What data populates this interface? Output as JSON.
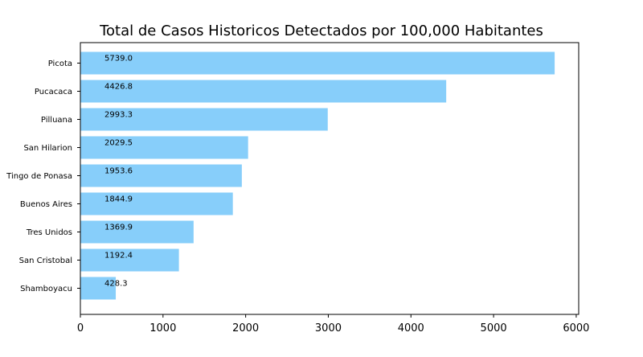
{
  "chart_data": {
    "type": "bar",
    "orientation": "horizontal",
    "title": "Total de Casos Historicos Detectados por 100,000 Habitantes",
    "xlabel": "",
    "ylabel": "",
    "categories": [
      "Picota",
      "Pucacaca",
      "Pilluana",
      "San Hilarion",
      "Tingo de Ponasa",
      "Buenos Aires",
      "Tres Unidos",
      "San Cristobal",
      "Shamboyacu"
    ],
    "values": [
      5739.0,
      4426.8,
      2993.3,
      2029.5,
      1953.6,
      1844.9,
      1369.9,
      1192.4,
      428.3
    ],
    "data_labels": [
      "5739.0",
      "4426.8",
      "2993.3",
      "2029.5",
      "1953.6",
      "1844.9",
      "1369.9",
      "1192.4",
      "428.3"
    ],
    "xlim": [
      0,
      6030
    ],
    "xticks": [
      0,
      1000,
      2000,
      3000,
      4000,
      5000,
      6000
    ],
    "xtick_labels": [
      "0",
      "1000",
      "2000",
      "3000",
      "4000",
      "5000",
      "6000"
    ],
    "bar_color": "#87cefa",
    "grid": false,
    "legend": "none"
  }
}
